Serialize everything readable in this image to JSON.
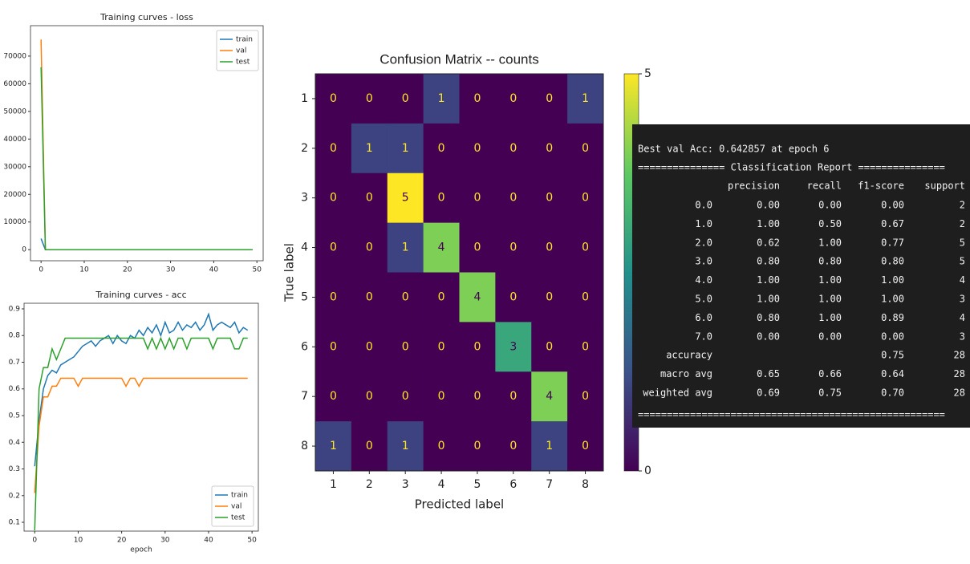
{
  "chart_data": [
    {
      "type": "line",
      "title": "Training curves - loss",
      "x": [
        0,
        1,
        2,
        3,
        4,
        5,
        6,
        7,
        8,
        9,
        10,
        11,
        12,
        13,
        14,
        15,
        16,
        17,
        18,
        19,
        20,
        21,
        22,
        23,
        24,
        25,
        26,
        27,
        28,
        29,
        30,
        31,
        32,
        33,
        34,
        35,
        36,
        37,
        38,
        39,
        40,
        41,
        42,
        43,
        44,
        45,
        46,
        47,
        48,
        49
      ],
      "series": [
        {
          "name": "train",
          "color": "#1f77b4",
          "values": [
            4000,
            1,
            1,
            1,
            1,
            1,
            1,
            1,
            1,
            1,
            1,
            1,
            1,
            1,
            1,
            1,
            1,
            1,
            1,
            1,
            1,
            1,
            1,
            1,
            1,
            1,
            1,
            1,
            1,
            1,
            1,
            1,
            1,
            1,
            1,
            1,
            1,
            1,
            1,
            1,
            1,
            1,
            1,
            1,
            1,
            1,
            1,
            1,
            1,
            1
          ]
        },
        {
          "name": "val",
          "color": "#ff7f0e",
          "values": [
            76000,
            1,
            1,
            1,
            1,
            1,
            1,
            1,
            1,
            1,
            1,
            1,
            1,
            1,
            1,
            1,
            1,
            1,
            1,
            1,
            1,
            1,
            1,
            1,
            1,
            1,
            1,
            1,
            1,
            1,
            1,
            1,
            1,
            1,
            1,
            1,
            1,
            1,
            1,
            1,
            1,
            1,
            1,
            1,
            1,
            1,
            1,
            1,
            1,
            1
          ]
        },
        {
          "name": "test",
          "color": "#2ca02c",
          "values": [
            66000,
            1,
            1,
            1,
            1,
            1,
            1,
            1,
            1,
            1,
            1,
            1,
            1,
            1,
            1,
            1,
            1,
            1,
            1,
            1,
            1,
            1,
            1,
            1,
            1,
            1,
            1,
            1,
            1,
            1,
            1,
            1,
            1,
            1,
            1,
            1,
            1,
            1,
            1,
            1,
            1,
            1,
            1,
            1,
            1,
            1,
            1,
            1,
            1,
            1
          ]
        }
      ],
      "xlim": [
        -2.45,
        51.45
      ],
      "xticks": [
        0,
        10,
        20,
        30,
        40,
        50
      ],
      "ylim": [
        -4000,
        81000
      ],
      "yticks": [
        0,
        10000,
        20000,
        30000,
        40000,
        50000,
        60000,
        70000
      ],
      "legend": "upper right"
    },
    {
      "type": "line",
      "title": "Training curves - acc",
      "xlabel": "epoch",
      "x": [
        0,
        1,
        2,
        3,
        4,
        5,
        6,
        7,
        8,
        9,
        10,
        11,
        12,
        13,
        14,
        15,
        16,
        17,
        18,
        19,
        20,
        21,
        22,
        23,
        24,
        25,
        26,
        27,
        28,
        29,
        30,
        31,
        32,
        33,
        34,
        35,
        36,
        37,
        38,
        39,
        40,
        41,
        42,
        43,
        44,
        45,
        46,
        47,
        48,
        49
      ],
      "series": [
        {
          "name": "train",
          "color": "#1f77b4",
          "values": [
            0.31,
            0.48,
            0.6,
            0.65,
            0.67,
            0.66,
            0.69,
            0.7,
            0.71,
            0.72,
            0.74,
            0.76,
            0.77,
            0.78,
            0.76,
            0.78,
            0.79,
            0.8,
            0.77,
            0.8,
            0.78,
            0.77,
            0.8,
            0.79,
            0.82,
            0.8,
            0.83,
            0.81,
            0.84,
            0.8,
            0.85,
            0.81,
            0.82,
            0.85,
            0.82,
            0.84,
            0.83,
            0.85,
            0.82,
            0.84,
            0.88,
            0.82,
            0.84,
            0.85,
            0.84,
            0.83,
            0.85,
            0.81,
            0.83,
            0.82
          ]
        },
        {
          "name": "val",
          "color": "#ff7f0e",
          "values": [
            0.21,
            0.46,
            0.57,
            0.57,
            0.61,
            0.61,
            0.64,
            0.64,
            0.64,
            0.64,
            0.61,
            0.64,
            0.64,
            0.64,
            0.64,
            0.64,
            0.64,
            0.64,
            0.64,
            0.64,
            0.64,
            0.61,
            0.64,
            0.64,
            0.61,
            0.64,
            0.64,
            0.64,
            0.64,
            0.64,
            0.64,
            0.64,
            0.64,
            0.64,
            0.64,
            0.64,
            0.64,
            0.64,
            0.64,
            0.64,
            0.64,
            0.64,
            0.64,
            0.64,
            0.64,
            0.64,
            0.64,
            0.64,
            0.64,
            0.64
          ]
        },
        {
          "name": "test",
          "color": "#2ca02c",
          "values": [
            0.07,
            0.6,
            0.68,
            0.68,
            0.75,
            0.71,
            0.75,
            0.79,
            0.79,
            0.79,
            0.79,
            0.79,
            0.79,
            0.79,
            0.79,
            0.79,
            0.79,
            0.79,
            0.79,
            0.79,
            0.79,
            0.79,
            0.79,
            0.79,
            0.79,
            0.79,
            0.75,
            0.79,
            0.75,
            0.79,
            0.75,
            0.79,
            0.75,
            0.79,
            0.79,
            0.75,
            0.79,
            0.79,
            0.79,
            0.79,
            0.79,
            0.75,
            0.79,
            0.79,
            0.79,
            0.79,
            0.75,
            0.75,
            0.79,
            0.79
          ]
        }
      ],
      "xlim": [
        -2.45,
        51.45
      ],
      "xticks": [
        0,
        10,
        20,
        30,
        40,
        50
      ],
      "ylim": [
        0.067,
        0.921
      ],
      "yticks": [
        0.1,
        0.2,
        0.3,
        0.4,
        0.5,
        0.6,
        0.7,
        0.8,
        0.9
      ],
      "legend": "lower right"
    },
    {
      "type": "heatmap",
      "title": "Confusion Matrix -- counts",
      "xlabel": "Predicted label",
      "ylabel": "True label",
      "x_categories": [
        "1",
        "2",
        "3",
        "4",
        "5",
        "6",
        "7",
        "8"
      ],
      "y_categories": [
        "1",
        "2",
        "3",
        "4",
        "5",
        "6",
        "7",
        "8"
      ],
      "values": [
        [
          0,
          0,
          0,
          1,
          0,
          0,
          0,
          1
        ],
        [
          0,
          1,
          1,
          0,
          0,
          0,
          0,
          0
        ],
        [
          0,
          0,
          5,
          0,
          0,
          0,
          0,
          0
        ],
        [
          0,
          0,
          1,
          4,
          0,
          0,
          0,
          0
        ],
        [
          0,
          0,
          0,
          0,
          4,
          0,
          0,
          0
        ],
        [
          0,
          0,
          0,
          0,
          0,
          3,
          0,
          0
        ],
        [
          0,
          0,
          0,
          0,
          0,
          0,
          4,
          0
        ],
        [
          1,
          0,
          1,
          0,
          0,
          0,
          1,
          0
        ]
      ],
      "colormap": "viridis",
      "clim": [
        0,
        5
      ],
      "cticks": [
        0,
        5
      ]
    }
  ],
  "report": {
    "header": "Best val Acc: 0.642857 at epoch 6",
    "title": "=============== Classification Report ===============",
    "columns": [
      "precision",
      "recall",
      "f1-score",
      "support"
    ],
    "rows": [
      {
        "label": "0.0",
        "values": [
          "0.00",
          "0.00",
          "0.00",
          "2"
        ]
      },
      {
        "label": "1.0",
        "values": [
          "1.00",
          "0.50",
          "0.67",
          "2"
        ]
      },
      {
        "label": "2.0",
        "values": [
          "0.62",
          "1.00",
          "0.77",
          "5"
        ]
      },
      {
        "label": "3.0",
        "values": [
          "0.80",
          "0.80",
          "0.80",
          "5"
        ]
      },
      {
        "label": "4.0",
        "values": [
          "1.00",
          "1.00",
          "1.00",
          "4"
        ]
      },
      {
        "label": "5.0",
        "values": [
          "1.00",
          "1.00",
          "1.00",
          "3"
        ]
      },
      {
        "label": "6.0",
        "values": [
          "0.80",
          "1.00",
          "0.89",
          "4"
        ]
      },
      {
        "label": "7.0",
        "values": [
          "0.00",
          "0.00",
          "0.00",
          "3"
        ]
      },
      {
        "label": "accuracy",
        "values": [
          null,
          null,
          "0.75",
          "28"
        ]
      },
      {
        "label": "macro avg",
        "values": [
          "0.65",
          "0.66",
          "0.64",
          "28"
        ]
      },
      {
        "label": "weighted avg",
        "values": [
          "0.69",
          "0.75",
          "0.70",
          "28"
        ]
      }
    ],
    "footer": "====================================================="
  }
}
